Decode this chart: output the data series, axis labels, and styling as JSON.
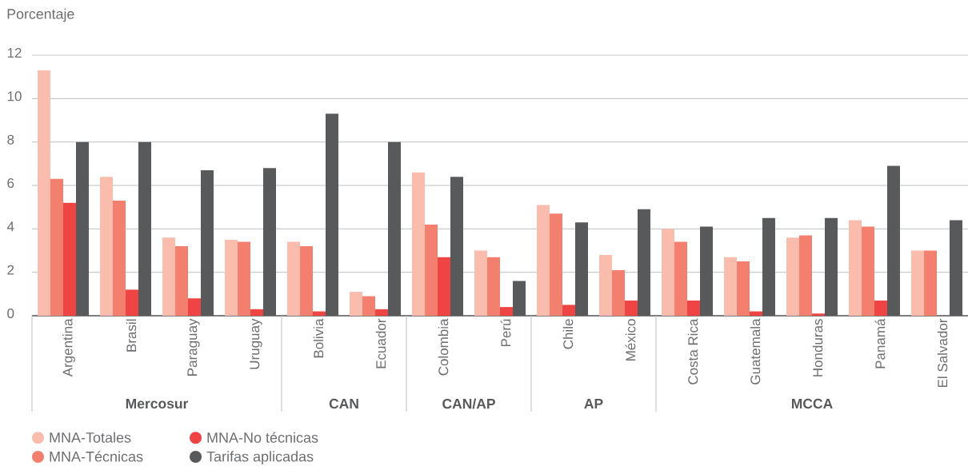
{
  "chart_data": {
    "type": "bar",
    "ylabel": "Porcentaje",
    "categories": [
      "Argentina",
      "Brasil",
      "Paraguay",
      "Uruguay",
      "Bolivia",
      "Ecuador",
      "Colombia",
      "Perú",
      "Chile",
      "México",
      "Costa Rica",
      "Guatemala",
      "Honduras",
      "Panamá",
      "El Salvador"
    ],
    "series": [
      {
        "name": "MNA-Totales",
        "color": "#f9bcad",
        "values": [
          11.3,
          6.4,
          3.6,
          3.5,
          3.4,
          1.1,
          6.6,
          3.0,
          5.1,
          2.8,
          4.0,
          2.7,
          3.6,
          4.4,
          3.0
        ]
      },
      {
        "name": "MNA-Técnicas",
        "color": "#f3806f",
        "values": [
          6.3,
          5.3,
          3.2,
          3.4,
          3.2,
          0.9,
          4.2,
          2.7,
          4.7,
          2.1,
          3.4,
          2.5,
          3.7,
          4.1,
          3.0
        ]
      },
      {
        "name": "MNA-No técnicas",
        "color": "#ee4443",
        "values": [
          5.2,
          1.2,
          0.8,
          0.3,
          0.2,
          0.3,
          2.7,
          0.4,
          0.5,
          0.7,
          0.7,
          0.2,
          0.1,
          0.7,
          null
        ]
      },
      {
        "name": "Tarifas aplicadas",
        "color": "#58595b",
        "values": [
          8.0,
          8.0,
          6.7,
          6.8,
          9.3,
          8.0,
          6.4,
          1.6,
          4.3,
          4.9,
          4.1,
          4.5,
          4.5,
          6.9,
          4.4
        ]
      }
    ],
    "ylim": [
      0,
      12
    ],
    "yticks": [
      0,
      2,
      4,
      6,
      8,
      10,
      12
    ],
    "grid": "y",
    "legend": "bottom left",
    "annotations": [
      "Mercosur",
      "CAN",
      "CAN/AP",
      "AP",
      "MCCA"
    ]
  }
}
